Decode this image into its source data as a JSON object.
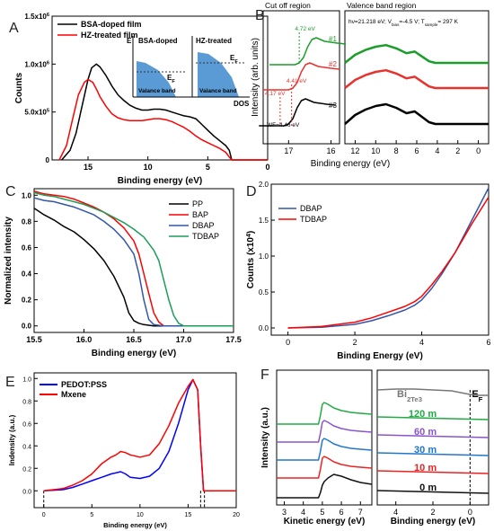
{
  "figure": {
    "panel_count": 6
  },
  "chart_data": [
    {
      "panel": "A",
      "type": "line",
      "xlabel": "Binding energy (eV)",
      "ylabel": "Counts",
      "xlim": [
        18,
        0
      ],
      "ylim": [
        0,
        1500000
      ],
      "xticks": [
        "15",
        "10",
        "5",
        "0"
      ],
      "yticks": [
        "0",
        "5.0x10^5",
        "1.0x10^6",
        "1.5x10^6"
      ],
      "legend_position": "top-left",
      "series": [
        {
          "name": "BSA-doped film",
          "color": "#000000",
          "x": [
            17.2,
            16.5,
            16,
            15.5,
            15,
            14.7,
            14.3,
            14,
            13.5,
            13,
            12.5,
            12,
            11.5,
            11,
            10.5,
            10,
            9.5,
            9,
            8.5,
            8,
            7.5,
            7,
            6.5,
            6,
            5.5,
            5,
            4.5,
            4,
            3.5,
            3.2,
            3,
            2,
            1,
            0
          ],
          "y": [
            0,
            100000,
            280000,
            560000,
            840000,
            960000,
            1000000,
            970000,
            880000,
            770000,
            680000,
            620000,
            570000,
            540000,
            520000,
            520000,
            530000,
            530000,
            520000,
            500000,
            480000,
            460000,
            450000,
            430000,
            370000,
            310000,
            250000,
            200000,
            150000,
            100000,
            0,
            0,
            0,
            0
          ]
        },
        {
          "name": "HZ-treated film",
          "color": "#ff0000",
          "x": [
            17.4,
            16.8,
            16.3,
            15.8,
            15.3,
            15,
            14.6,
            14.3,
            14,
            13.5,
            13,
            12.5,
            12,
            11.5,
            11,
            10.5,
            10,
            9.5,
            9,
            8.5,
            8,
            7.5,
            7,
            6.5,
            6,
            5.5,
            5,
            4.5,
            4,
            3.5,
            3.2,
            3,
            2,
            0
          ],
          "y": [
            0,
            150000,
            420000,
            680000,
            810000,
            840000,
            810000,
            740000,
            660000,
            560000,
            480000,
            440000,
            420000,
            410000,
            410000,
            410000,
            420000,
            430000,
            430000,
            420000,
            400000,
            370000,
            340000,
            300000,
            250000,
            210000,
            180000,
            150000,
            120000,
            80000,
            30000,
            0,
            0,
            0
          ]
        }
      ],
      "inset": {
        "left_title": "BSA-doped",
        "right_title": "HZ-treated",
        "left_band": "Valance band",
        "right_band": "Valance band",
        "y_label": "E",
        "fermi_label": "E_F",
        "x_label": "DOS"
      }
    },
    {
      "panel": "B",
      "type": "line",
      "region_left": "Cut off region",
      "region_right": "Valence band region",
      "conditions": "hν=21.218 eV; V_bias=-4.5 V; T_sample= 297 K",
      "ylabel": "Intensity (arb. units)",
      "xlabel": "Binding energy (eV)",
      "xticks_left": [
        "17",
        "16"
      ],
      "xticks_right": [
        "12",
        "10",
        "8",
        "6",
        "4",
        "2",
        "0"
      ],
      "series": [
        {
          "name": "#1",
          "color": "#1a9e2a",
          "annotation": "4.72 eV"
        },
        {
          "name": "#2",
          "color": "#e8322d",
          "annotations": [
            "4.41 eV",
            "4.17 eV"
          ]
        },
        {
          "name": "#3",
          "color": "#000000",
          "annotation": "WF=4.46 eV"
        }
      ]
    },
    {
      "panel": "C",
      "type": "line",
      "xlabel": "Binding energy (eV)",
      "ylabel": "Normalized intensity",
      "xlim": [
        15.5,
        17.5
      ],
      "ylim": [
        -0.05,
        1.05
      ],
      "xticks": [
        "15.5",
        "16.0",
        "16.5",
        "17.0",
        "17.5"
      ],
      "yticks": [
        "0.0",
        "0.2",
        "0.4",
        "0.6",
        "0.8",
        "1.0"
      ],
      "legend_position": "top-right",
      "series": [
        {
          "name": "PP",
          "color": "#000000",
          "x": [
            15.5,
            15.6,
            15.7,
            15.8,
            15.9,
            16.0,
            16.1,
            16.2,
            16.3,
            16.4,
            16.45,
            16.5,
            16.55,
            16.6,
            16.7,
            17.5
          ],
          "y": [
            0.9,
            0.85,
            0.81,
            0.76,
            0.72,
            0.66,
            0.59,
            0.5,
            0.38,
            0.22,
            0.1,
            0.04,
            0.02,
            0.01,
            0.0,
            0.0
          ]
        },
        {
          "name": "BAP",
          "color": "#ff0000",
          "x": [
            15.5,
            15.6,
            15.7,
            15.8,
            15.9,
            16.0,
            16.1,
            16.2,
            16.3,
            16.4,
            16.5,
            16.55,
            16.6,
            16.65,
            16.7,
            16.75,
            16.8,
            16.9,
            17.5
          ],
          "y": [
            1.03,
            1.01,
            1.0,
            0.99,
            0.97,
            0.94,
            0.91,
            0.87,
            0.82,
            0.75,
            0.65,
            0.55,
            0.4,
            0.25,
            0.1,
            0.03,
            0.0,
            0.0,
            0.0
          ]
        },
        {
          "name": "DBAP",
          "color": "#3355aa",
          "x": [
            15.5,
            15.6,
            15.7,
            15.8,
            15.9,
            16.0,
            16.1,
            16.2,
            16.3,
            16.4,
            16.5,
            16.55,
            16.6,
            16.65,
            16.7,
            16.8,
            17.5
          ],
          "y": [
            0.98,
            0.96,
            0.95,
            0.93,
            0.91,
            0.88,
            0.85,
            0.8,
            0.74,
            0.66,
            0.55,
            0.4,
            0.2,
            0.05,
            0.01,
            0.0,
            0.0
          ]
        },
        {
          "name": "TDBAP",
          "color": "#1a9e5a",
          "x": [
            15.5,
            15.6,
            15.7,
            15.8,
            15.9,
            16.0,
            16.1,
            16.2,
            16.3,
            16.4,
            16.5,
            16.6,
            16.7,
            16.75,
            16.8,
            16.85,
            16.9,
            16.95,
            17.0,
            17.5
          ],
          "y": [
            1.02,
            1.0,
            0.99,
            0.97,
            0.95,
            0.93,
            0.9,
            0.87,
            0.83,
            0.79,
            0.74,
            0.68,
            0.58,
            0.5,
            0.35,
            0.2,
            0.08,
            0.02,
            0.0,
            0.0
          ]
        }
      ]
    },
    {
      "panel": "D",
      "type": "line",
      "xlabel": "Binding Energy (eV)",
      "ylabel": "Counts (x10^4)",
      "xlim": [
        -0.5,
        6
      ],
      "ylim": [
        -0.1,
        2.0
      ],
      "xticks": [
        "0",
        "2",
        "4",
        "6"
      ],
      "yticks": [
        "0.0",
        "0.5",
        "1.0",
        "1.5",
        "2.0"
      ],
      "legend_position": "top-left",
      "series": [
        {
          "name": "DBAP",
          "color": "#3355aa",
          "x": [
            0,
            1,
            2,
            2.5,
            3,
            3.5,
            3.8,
            4,
            4.3,
            4.6,
            5,
            5.5,
            6
          ],
          "y": [
            0,
            0.01,
            0.05,
            0.1,
            0.17,
            0.25,
            0.32,
            0.39,
            0.55,
            0.75,
            1.05,
            1.5,
            1.95
          ]
        },
        {
          "name": "TDBAP",
          "color": "#ff0000",
          "x": [
            0,
            1,
            2,
            2.5,
            3,
            3.5,
            3.8,
            4,
            4.3,
            4.6,
            5,
            5.5,
            6
          ],
          "y": [
            0,
            0.02,
            0.08,
            0.14,
            0.22,
            0.3,
            0.37,
            0.44,
            0.6,
            0.78,
            1.05,
            1.45,
            1.82
          ]
        }
      ]
    },
    {
      "panel": "E",
      "type": "line",
      "xlabel": "Binding energy (eV)",
      "ylabel": "Indensity (a.u.)",
      "xlim": [
        -1,
        20
      ],
      "ylim": [
        -0.15,
        1.05
      ],
      "xticks": [
        "0",
        "5",
        "10",
        "15",
        "20"
      ],
      "yticks": [
        "0.0",
        "0.2",
        "0.4",
        "0.6",
        "0.8",
        "1.0"
      ],
      "legend_position": "top-left",
      "series": [
        {
          "name": "PEDOT:PSS",
          "color": "#0000ff",
          "x": [
            0,
            2,
            3,
            4,
            5,
            6,
            7,
            8,
            8.5,
            9,
            10,
            11,
            12,
            13,
            14,
            15,
            15.5,
            16,
            16.3,
            16.6,
            20
          ],
          "y": [
            0,
            0.01,
            0.03,
            0.06,
            0.09,
            0.12,
            0.15,
            0.17,
            0.15,
            0.12,
            0.11,
            0.13,
            0.2,
            0.35,
            0.6,
            0.9,
            0.99,
            0.9,
            0.4,
            0.0,
            0.0
          ]
        },
        {
          "name": "Mxene",
          "color": "#ff0000",
          "x": [
            0,
            2,
            3,
            4,
            5,
            6,
            7,
            7.5,
            8,
            8.5,
            9,
            10,
            11,
            12,
            13,
            14,
            15,
            15.5,
            16,
            16.3,
            16.6,
            20
          ],
          "y": [
            0,
            0.02,
            0.05,
            0.09,
            0.15,
            0.24,
            0.3,
            0.32,
            0.35,
            0.34,
            0.32,
            0.3,
            0.32,
            0.42,
            0.58,
            0.78,
            0.93,
            0.99,
            0.9,
            0.4,
            0.0,
            0.0
          ]
        }
      ]
    },
    {
      "panel": "F",
      "type": "line",
      "ylabel": "Intensity (a.u.)",
      "left": {
        "xlabel": "Kinetic energy (eV)",
        "xticks": [
          "3",
          "4",
          "5",
          "6",
          "7"
        ]
      },
      "right": {
        "xlabel": "Binding energy (eV)",
        "xticks": [
          "4",
          "2",
          "0"
        ],
        "fermi_label": "E_F"
      },
      "series": [
        {
          "name": "Bi2Te3",
          "color": "#777777"
        },
        {
          "name": "120 m",
          "color": "#22aa44"
        },
        {
          "name": "60 m",
          "color": "#8855cc"
        },
        {
          "name": "30 m",
          "color": "#2277cc"
        },
        {
          "name": "10 m",
          "color": "#ee2222"
        },
        {
          "name": "0 m",
          "color": "#111111"
        }
      ]
    }
  ],
  "panel_labels": [
    "A",
    "B",
    "C",
    "D",
    "E",
    "F"
  ]
}
